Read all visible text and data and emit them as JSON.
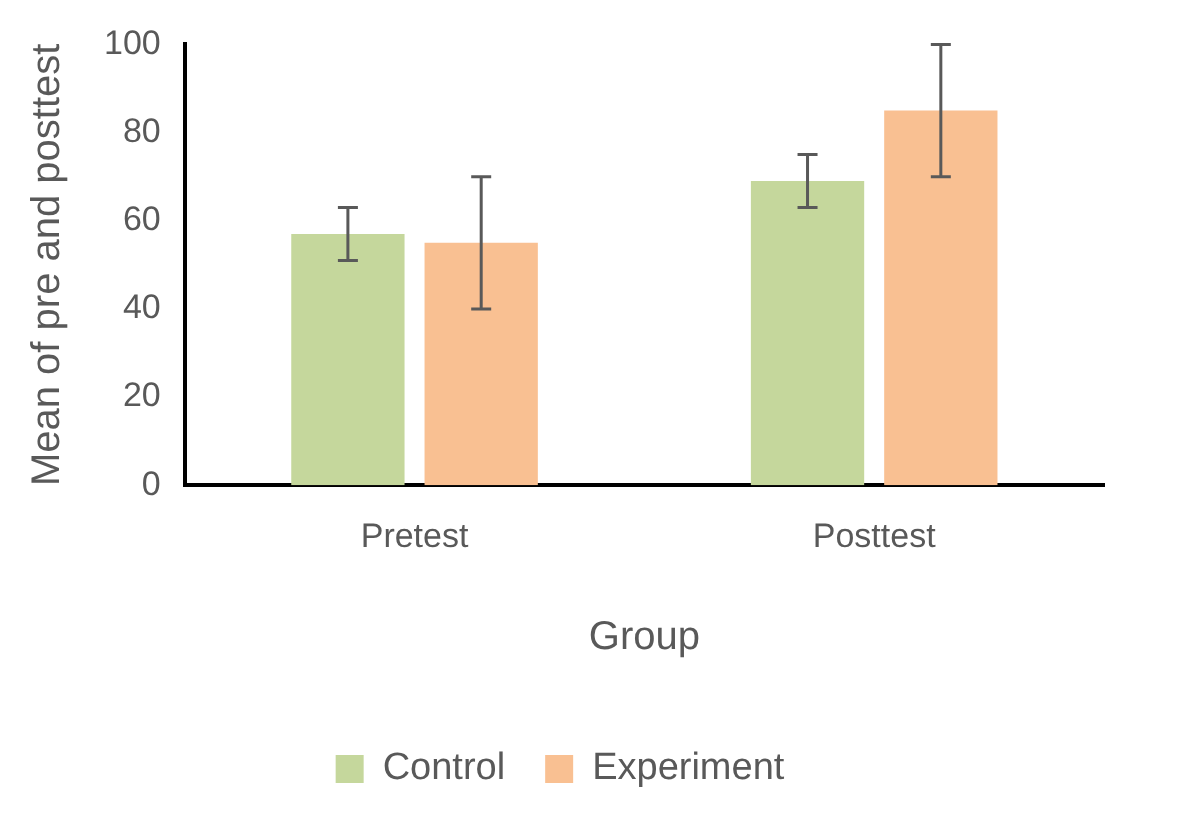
{
  "chart_data": {
    "type": "bar",
    "xlabel": "Group",
    "ylabel": "Mean of pre and posttest",
    "categories": [
      "Pretest",
      "Posttest"
    ],
    "series": [
      {
        "name": "Control",
        "color": "#c5d79c",
        "values": [
          57,
          69
        ],
        "errors": [
          6,
          6
        ]
      },
      {
        "name": "Experiment",
        "color": "#f9c092",
        "values": [
          55,
          85
        ],
        "errors": [
          15,
          15
        ]
      }
    ],
    "ylim": [
      0,
      100
    ],
    "yticks": [
      0,
      20,
      40,
      60,
      80,
      100
    ],
    "grid": false,
    "legend": "bottom"
  }
}
